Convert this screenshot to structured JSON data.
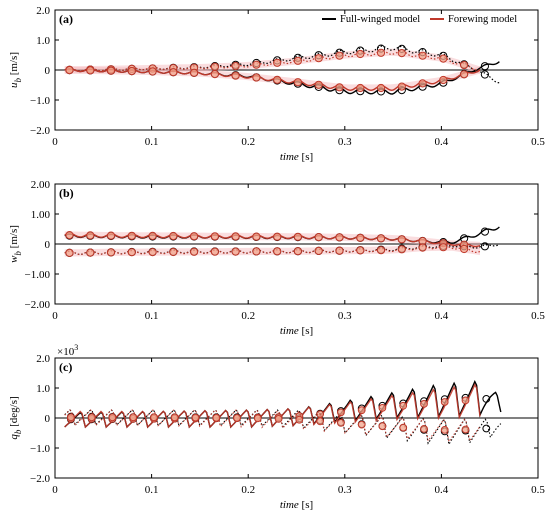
{
  "colors": {
    "full": "#000000",
    "fore": "#c0392b",
    "band": "#f5b3b8",
    "marker_fill_fore": "#f2a48c"
  },
  "legend": {
    "full": "Full-winged model",
    "fore": "Forewing model"
  },
  "chart_data": [
    {
      "type": "line",
      "panel": "(a)",
      "ylabel_main": "u",
      "ylabel_sub": "b",
      "ylabel_unit": "[m/s]",
      "xlabel": "time",
      "xlabel_unit": "[s]",
      "xlim": [
        0,
        0.5
      ],
      "ylim": [
        -2.0,
        2.0
      ],
      "xticks": [
        "0",
        "0.1",
        "0.2",
        "0.3",
        "0.4",
        "0.5"
      ],
      "yticks": [
        "−2.0",
        "−1.0",
        "0",
        "1.0",
        "2.0"
      ],
      "y_multiplier": "",
      "grid": false,
      "legend_position": "top-right",
      "series": [
        {
          "key": "full_upper",
          "style": "dotted",
          "color": "full",
          "x": [
            0.01,
            0.05,
            0.1,
            0.15,
            0.2,
            0.25,
            0.3,
            0.35,
            0.4,
            0.43,
            0.46
          ],
          "y": [
            0.0,
            0.02,
            0.05,
            0.1,
            0.2,
            0.4,
            0.6,
            0.75,
            0.5,
            0.1,
            -0.4
          ]
        },
        {
          "key": "full_lower",
          "style": "solid",
          "color": "full",
          "x": [
            0.01,
            0.05,
            0.1,
            0.15,
            0.2,
            0.25,
            0.3,
            0.35,
            0.4,
            0.43,
            0.46
          ],
          "y": [
            0.0,
            -0.02,
            -0.05,
            -0.1,
            -0.2,
            -0.45,
            -0.7,
            -0.72,
            -0.45,
            -0.05,
            0.3
          ]
        },
        {
          "key": "fore_upper",
          "style": "dotted",
          "color": "fore",
          "x": [
            0.01,
            0.05,
            0.1,
            0.15,
            0.2,
            0.25,
            0.3,
            0.35,
            0.4,
            0.44
          ],
          "y": [
            0.0,
            0.02,
            0.05,
            0.08,
            0.15,
            0.3,
            0.5,
            0.6,
            0.4,
            0.0
          ]
        },
        {
          "key": "fore_lower",
          "style": "solid",
          "color": "fore",
          "x": [
            0.01,
            0.05,
            0.1,
            0.15,
            0.2,
            0.25,
            0.3,
            0.35,
            0.4,
            0.44
          ],
          "y": [
            0.0,
            -0.02,
            -0.05,
            -0.1,
            -0.22,
            -0.4,
            -0.6,
            -0.6,
            -0.35,
            0.0
          ]
        }
      ]
    },
    {
      "type": "line",
      "panel": "(b)",
      "ylabel_main": "w",
      "ylabel_sub": "b",
      "ylabel_unit": "[m/s]",
      "xlabel": "time",
      "xlabel_unit": "[s]",
      "xlim": [
        0,
        0.5
      ],
      "ylim": [
        -2.0,
        2.0
      ],
      "xticks": [
        "0",
        "0.1",
        "0.2",
        "0.3",
        "0.4",
        "0.5"
      ],
      "yticks": [
        "−2.00",
        "−1.00",
        "0",
        "1.00",
        "2.00"
      ],
      "y_multiplier": "",
      "grid": false,
      "legend_position": "",
      "series": [
        {
          "key": "full_upper",
          "style": "solid",
          "color": "full",
          "x": [
            0.01,
            0.05,
            0.1,
            0.15,
            0.2,
            0.25,
            0.3,
            0.35,
            0.38,
            0.41,
            0.44,
            0.46
          ],
          "y": [
            0.28,
            0.27,
            0.25,
            0.25,
            0.24,
            0.23,
            0.22,
            0.18,
            0.1,
            0.05,
            0.35,
            0.6
          ]
        },
        {
          "key": "full_lower",
          "style": "dotted",
          "color": "full",
          "x": [
            0.01,
            0.05,
            0.1,
            0.15,
            0.2,
            0.25,
            0.3,
            0.35,
            0.38,
            0.41,
            0.44,
            0.46
          ],
          "y": [
            -0.3,
            -0.28,
            -0.26,
            -0.25,
            -0.25,
            -0.24,
            -0.22,
            -0.18,
            -0.1,
            -0.05,
            -0.1,
            0.0
          ]
        },
        {
          "key": "fore_upper",
          "style": "solid",
          "color": "fore",
          "x": [
            0.01,
            0.05,
            0.1,
            0.15,
            0.2,
            0.25,
            0.3,
            0.35,
            0.38,
            0.41,
            0.44
          ],
          "y": [
            0.3,
            0.28,
            0.27,
            0.26,
            0.25,
            0.24,
            0.22,
            0.18,
            0.1,
            0.0,
            -0.05
          ]
        },
        {
          "key": "fore_lower",
          "style": "dotted",
          "color": "fore",
          "x": [
            0.01,
            0.05,
            0.1,
            0.15,
            0.2,
            0.25,
            0.3,
            0.35,
            0.38,
            0.41,
            0.44
          ],
          "y": [
            -0.3,
            -0.28,
            -0.27,
            -0.26,
            -0.25,
            -0.24,
            -0.22,
            -0.2,
            -0.12,
            -0.1,
            -0.25
          ]
        }
      ]
    },
    {
      "type": "line",
      "panel": "(c)",
      "ylabel_main": "q",
      "ylabel_sub": "b",
      "ylabel_unit": "[deg/s]",
      "xlabel": "time",
      "xlabel_unit": "[s]",
      "xlim": [
        0,
        0.5
      ],
      "ylim": [
        -2.0,
        2.0
      ],
      "xticks": [
        "0",
        "0.1",
        "0.2",
        "0.3",
        "0.4",
        "0.5"
      ],
      "yticks": [
        "−2.0",
        "−1.0",
        "0",
        "1.0",
        "2.0"
      ],
      "y_multiplier": "×10",
      "y_multiplier_exp": "3",
      "grid": false,
      "legend_position": "",
      "oscillation": {
        "period_s": 0.0215,
        "start_s": 0.01,
        "end_full_s": 0.462,
        "end_fore_s": 0.44
      },
      "series": [
        {
          "key": "full_solid",
          "style": "solid",
          "color": "full",
          "envelope_x": [
            0.01,
            0.1,
            0.2,
            0.25,
            0.3,
            0.35,
            0.4,
            0.44,
            0.46
          ],
          "envelope_top": [
            0.2,
            0.25,
            0.3,
            0.35,
            0.6,
            0.9,
            1.2,
            1.3,
            0.8
          ],
          "envelope_bottom": [
            -0.3,
            -0.3,
            -0.3,
            -0.25,
            -0.1,
            0.0,
            0.05,
            0.1,
            0.2
          ]
        },
        {
          "key": "full_dotted",
          "style": "dotted",
          "color": "full",
          "envelope_x": [
            0.01,
            0.1,
            0.2,
            0.25,
            0.3,
            0.35,
            0.4,
            0.44,
            0.46
          ],
          "envelope_top": [
            0.3,
            0.3,
            0.3,
            0.3,
            0.2,
            0.1,
            0.0,
            0.0,
            0.0
          ],
          "envelope_bottom": [
            -0.2,
            -0.25,
            -0.25,
            -0.3,
            -0.5,
            -0.7,
            -0.9,
            -0.8,
            -0.5
          ]
        },
        {
          "key": "fore_solid",
          "style": "solid",
          "color": "fore",
          "envelope_x": [
            0.01,
            0.1,
            0.2,
            0.25,
            0.3,
            0.35,
            0.4,
            0.44
          ],
          "envelope_top": [
            0.25,
            0.25,
            0.3,
            0.35,
            0.55,
            0.8,
            1.05,
            1.2
          ],
          "envelope_bottom": [
            -0.3,
            -0.3,
            -0.3,
            -0.25,
            -0.15,
            -0.05,
            0.0,
            0.05
          ]
        },
        {
          "key": "fore_dotted",
          "style": "dotted",
          "color": "fore",
          "envelope_x": [
            0.01,
            0.1,
            0.2,
            0.25,
            0.3,
            0.35,
            0.4,
            0.44
          ],
          "envelope_top": [
            0.3,
            0.3,
            0.3,
            0.25,
            0.15,
            0.05,
            0.0,
            0.0
          ],
          "envelope_bottom": [
            -0.25,
            -0.25,
            -0.3,
            -0.35,
            -0.5,
            -0.65,
            -0.8,
            -0.75
          ]
        }
      ]
    }
  ]
}
